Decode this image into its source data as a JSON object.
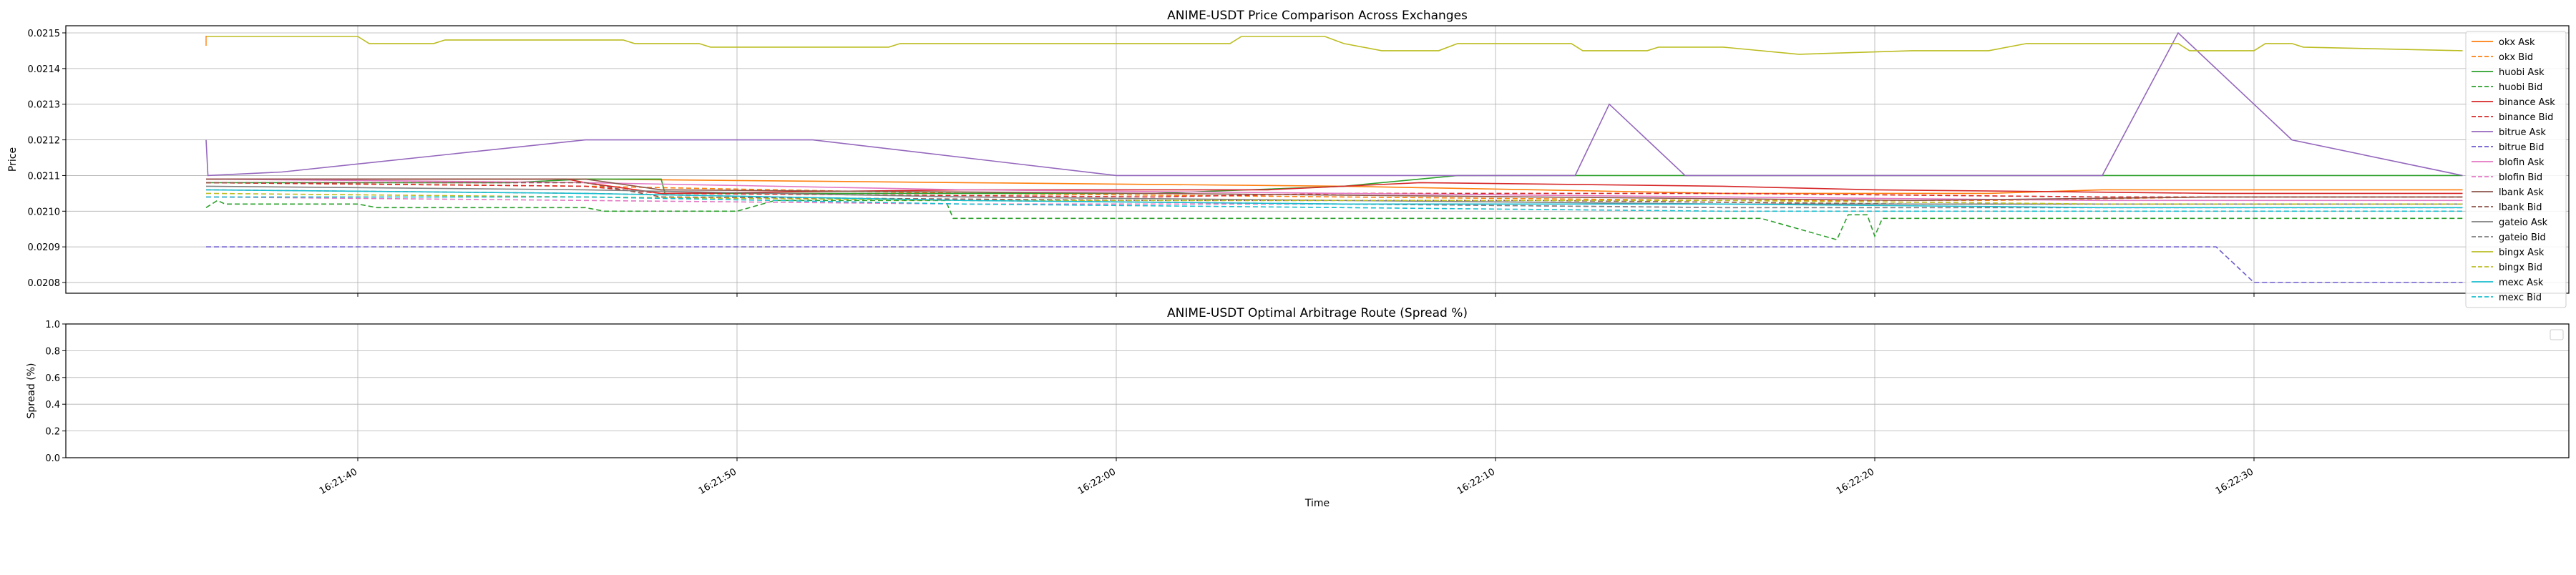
{
  "chart_data": [
    {
      "type": "line",
      "title": "ANIME-USDT Price Comparison Across Exchanges",
      "xlabel": "",
      "ylabel": "Price",
      "ylim": [
        0.02077,
        0.02152
      ],
      "yticks": [
        "0.0208",
        "0.0209",
        "0.0210",
        "0.0211",
        "0.0212",
        "0.0213",
        "0.0214",
        "0.0215"
      ],
      "xticks": [
        "16:21:40",
        "16:21:50",
        "16:22:00",
        "16:22:10",
        "16:22:20",
        "16:22:30"
      ],
      "grid": true,
      "legend_position": "right",
      "series": [
        {
          "name": "okx Ask",
          "color": "#ff7f0e",
          "dash": false,
          "points": [
            [
              0,
              0.02109
            ],
            [
              10,
              0.02109
            ],
            [
              20,
              0.02108
            ],
            [
              30,
              0.02107
            ],
            [
              40,
              0.02105
            ],
            [
              47,
              0.02105
            ],
            [
              50,
              0.02106
            ],
            [
              53,
              0.02106
            ],
            [
              59.5,
              0.02106
            ]
          ]
        },
        {
          "name": "okx Bid",
          "color": "#ff7f0e",
          "dash": true,
          "points": [
            [
              0,
              0.02108
            ],
            [
              10,
              0.02107
            ],
            [
              20,
              0.02105
            ],
            [
              30,
              0.02104
            ],
            [
              40,
              0.02103
            ],
            [
              47,
              0.02103
            ],
            [
              53,
              0.02104
            ],
            [
              59.5,
              0.02104
            ]
          ]
        },
        {
          "name": "huobi Ask",
          "color": "#2ca02c",
          "dash": false,
          "points": [
            [
              0,
              0.02108
            ],
            [
              8,
              0.02108
            ],
            [
              10,
              0.02109
            ],
            [
              12,
              0.02109
            ],
            [
              12.1,
              0.02105
            ],
            [
              20,
              0.02105
            ],
            [
              25,
              0.02105
            ],
            [
              30,
              0.02107
            ],
            [
              33,
              0.0211
            ],
            [
              40,
              0.0211
            ],
            [
              44,
              0.0211
            ],
            [
              48,
              0.0211
            ],
            [
              59.5,
              0.0211
            ]
          ]
        },
        {
          "name": "huobi Bid",
          "color": "#2ca02c",
          "dash": true,
          "points": [
            [
              0,
              0.02101
            ],
            [
              0.3,
              0.02103
            ],
            [
              0.5,
              0.02102
            ],
            [
              4,
              0.02102
            ],
            [
              4.5,
              0.02101
            ],
            [
              10,
              0.02101
            ],
            [
              10.5,
              0.021
            ],
            [
              14,
              0.021
            ],
            [
              15,
              0.02103
            ],
            [
              19.5,
              0.02103
            ],
            [
              19.7,
              0.02098
            ],
            [
              30,
              0.02098
            ],
            [
              38,
              0.02098
            ],
            [
              41,
              0.02098
            ],
            [
              42,
              0.02095
            ],
            [
              43,
              0.02092
            ],
            [
              43.3,
              0.02099
            ],
            [
              43.8,
              0.02099
            ],
            [
              44,
              0.02093
            ],
            [
              44.2,
              0.02098
            ],
            [
              50,
              0.02098
            ],
            [
              59.5,
              0.02098
            ]
          ]
        },
        {
          "name": "binance Ask",
          "color": "#d62728",
          "dash": false,
          "points": [
            [
              0,
              0.02109
            ],
            [
              9,
              0.02109
            ],
            [
              9.5,
              0.02109
            ],
            [
              10,
              0.02108
            ],
            [
              12,
              0.02105
            ],
            [
              20,
              0.02106
            ],
            [
              28,
              0.02106
            ],
            [
              32,
              0.02108
            ],
            [
              40,
              0.02107
            ],
            [
              44,
              0.02106
            ],
            [
              53,
              0.02105
            ],
            [
              59.5,
              0.02105
            ]
          ]
        },
        {
          "name": "binance Bid",
          "color": "#d62728",
          "dash": true,
          "points": [
            [
              0,
              0.02108
            ],
            [
              10,
              0.02107
            ],
            [
              12,
              0.02105
            ],
            [
              25,
              0.02104
            ],
            [
              30,
              0.02105
            ],
            [
              40,
              0.02105
            ],
            [
              50,
              0.02104
            ],
            [
              59.5,
              0.02104
            ]
          ]
        },
        {
          "name": "bitrue Ask",
          "color": "#9467bd",
          "dash": false,
          "points": [
            [
              0,
              0.0212
            ],
            [
              0.05,
              0.0211
            ],
            [
              2,
              0.02111
            ],
            [
              10,
              0.0212
            ],
            [
              16,
              0.0212
            ],
            [
              24,
              0.0211
            ],
            [
              36,
              0.0211
            ],
            [
              36.1,
              0.0211
            ],
            [
              37,
              0.0213
            ],
            [
              39,
              0.0211
            ],
            [
              50,
              0.0211
            ],
            [
              52,
              0.0215
            ],
            [
              55,
              0.0212
            ],
            [
              59.5,
              0.0211
            ]
          ]
        },
        {
          "name": "bitrue Bid",
          "color": "#6a5acd",
          "dash": true,
          "points": [
            [
              0,
              0.0209
            ],
            [
              53,
              0.0209
            ],
            [
              54,
              0.0208
            ],
            [
              59.5,
              0.0208
            ]
          ]
        },
        {
          "name": "blofin Ask",
          "color": "#e377c2",
          "dash": false,
          "points": [
            [
              0,
              0.02109
            ],
            [
              10,
              0.02108
            ],
            [
              20,
              0.02106
            ],
            [
              30,
              0.02105
            ],
            [
              40,
              0.02104
            ],
            [
              50,
              0.02103
            ],
            [
              59.5,
              0.02103
            ]
          ]
        },
        {
          "name": "blofin Bid",
          "color": "#e377c2",
          "dash": true,
          "points": [
            [
              0,
              0.02104
            ],
            [
              10,
              0.02103
            ],
            [
              20,
              0.02102
            ],
            [
              30,
              0.02102
            ],
            [
              40,
              0.02101
            ],
            [
              50,
              0.02101
            ],
            [
              59.5,
              0.02101
            ]
          ]
        },
        {
          "name": "lbank Ask",
          "color": "#8c564b",
          "dash": false,
          "points": [
            [
              0,
              0.02109
            ],
            [
              10,
              0.02109
            ],
            [
              12,
              0.02106
            ],
            [
              25,
              0.02105
            ],
            [
              35,
              0.02104
            ],
            [
              45,
              0.02103
            ],
            [
              53,
              0.02104
            ],
            [
              59.5,
              0.02104
            ]
          ]
        },
        {
          "name": "lbank Bid",
          "color": "#8c564b",
          "dash": true,
          "points": [
            [
              0,
              0.02108
            ],
            [
              10,
              0.02108
            ],
            [
              12,
              0.02104
            ],
            [
              25,
              0.02103
            ],
            [
              35,
              0.02103
            ],
            [
              45,
              0.02102
            ],
            [
              59.5,
              0.02102
            ]
          ]
        },
        {
          "name": "gateio Ask",
          "color": "#7f7f7f",
          "dash": false,
          "points": [
            [
              0,
              0.02107
            ],
            [
              10,
              0.02106
            ],
            [
              20,
              0.02104
            ],
            [
              30,
              0.02103
            ],
            [
              40,
              0.02102
            ],
            [
              50,
              0.02102
            ],
            [
              59.5,
              0.02102
            ]
          ]
        },
        {
          "name": "gateio Bid",
          "color": "#7f7f7f",
          "dash": true,
          "points": [
            [
              0,
              0.02106
            ],
            [
              10,
              0.02105
            ],
            [
              20,
              0.02103
            ],
            [
              30,
              0.02102
            ],
            [
              40,
              0.02101
            ],
            [
              50,
              0.02101
            ],
            [
              59.5,
              0.02101
            ]
          ]
        },
        {
          "name": "bingx Ask",
          "color": "#bcbd22",
          "dash": false,
          "points": [
            [
              0,
              0.02149
            ],
            [
              4,
              0.02149
            ],
            [
              4.3,
              0.02147
            ],
            [
              6,
              0.02147
            ],
            [
              6.3,
              0.02148
            ],
            [
              11,
              0.02148
            ],
            [
              11.3,
              0.02147
            ],
            [
              13,
              0.02147
            ],
            [
              13.3,
              0.02146
            ],
            [
              18,
              0.02146
            ],
            [
              18.3,
              0.02147
            ],
            [
              27,
              0.02147
            ],
            [
              27.3,
              0.02149
            ],
            [
              29.5,
              0.02149
            ],
            [
              30,
              0.02147
            ],
            [
              31,
              0.02145
            ],
            [
              32.5,
              0.02145
            ],
            [
              33,
              0.02147
            ],
            [
              36,
              0.02147
            ],
            [
              36.3,
              0.02145
            ],
            [
              38,
              0.02145
            ],
            [
              38.3,
              0.02146
            ],
            [
              40,
              0.02146
            ],
            [
              42,
              0.02144
            ],
            [
              45,
              0.02145
            ],
            [
              47,
              0.02145
            ],
            [
              48,
              0.02147
            ],
            [
              52,
              0.02147
            ],
            [
              52.3,
              0.02145
            ],
            [
              54,
              0.02145
            ],
            [
              54.3,
              0.02147
            ],
            [
              55,
              0.02147
            ],
            [
              55.3,
              0.02146
            ],
            [
              59.5,
              0.02145
            ]
          ]
        },
        {
          "name": "bingx Bid",
          "color": "#bcbd22",
          "dash": true,
          "points": [
            [
              0,
              0.02105
            ],
            [
              10,
              0.02104
            ],
            [
              20,
              0.02103
            ],
            [
              30,
              0.02103
            ],
            [
              40,
              0.02103
            ],
            [
              50,
              0.02102
            ],
            [
              59.5,
              0.02102
            ]
          ]
        },
        {
          "name": "mexc Ask",
          "color": "#17becf",
          "dash": false,
          "points": [
            [
              0,
              0.02106
            ],
            [
              10,
              0.02105
            ],
            [
              20,
              0.02103
            ],
            [
              30,
              0.02102
            ],
            [
              40,
              0.02102
            ],
            [
              50,
              0.02101
            ],
            [
              59.5,
              0.02101
            ]
          ]
        },
        {
          "name": "mexc Bid",
          "color": "#17becf",
          "dash": true,
          "points": [
            [
              0,
              0.02104
            ],
            [
              10,
              0.02104
            ],
            [
              20,
              0.02102
            ],
            [
              30,
              0.02101
            ],
            [
              40,
              0.021
            ],
            [
              50,
              0.021
            ],
            [
              59.5,
              0.021
            ]
          ]
        }
      ]
    },
    {
      "type": "line",
      "title": "ANIME-USDT Optimal Arbitrage Route (Spread %)",
      "xlabel": "Time",
      "ylabel": "Spread (%)",
      "ylim": [
        0.0,
        1.0
      ],
      "yticks": [
        "0.0",
        "0.2",
        "0.4",
        "0.6",
        "0.8",
        "1.0"
      ],
      "xticks": [
        "16:21:40",
        "16:21:50",
        "16:22:00",
        "16:22:10",
        "16:22:20",
        "16:22:30"
      ],
      "grid": true,
      "series": []
    }
  ]
}
